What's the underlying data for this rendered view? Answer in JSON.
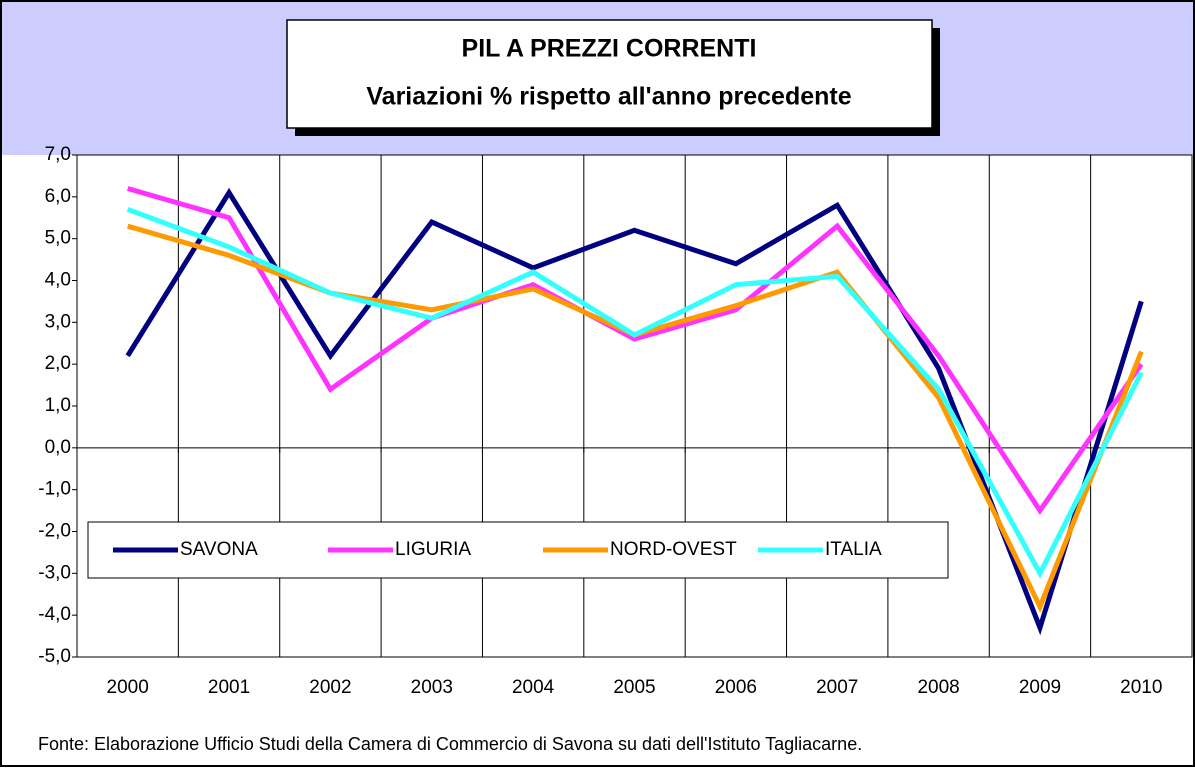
{
  "chart_data": {
    "type": "line",
    "title": "PIL A PREZZI CORRENTI",
    "subtitle": "Variazioni % rispetto all'anno precedente",
    "source": "Fonte: Elaborazione Ufficio Studi della Camera di Commercio di Savona su dati dell'Istituto Tagliacarne.",
    "categories": [
      "2000",
      "2001",
      "2002",
      "2003",
      "2004",
      "2005",
      "2006",
      "2007",
      "2008",
      "2009",
      "2010"
    ],
    "series": [
      {
        "name": "SAVONA",
        "color": "#000080",
        "values": [
          2.2,
          6.1,
          2.2,
          5.4,
          4.3,
          5.2,
          4.4,
          5.8,
          1.9,
          -4.3,
          3.5
        ]
      },
      {
        "name": "LIGURIA",
        "color": "#ff33ff",
        "values": [
          6.2,
          5.5,
          1.4,
          3.1,
          3.9,
          2.6,
          3.3,
          5.3,
          2.2,
          -1.5,
          2.0
        ]
      },
      {
        "name": "NORD-OVEST",
        "color": "#ff9900",
        "values": [
          5.3,
          4.6,
          3.7,
          3.3,
          3.8,
          2.7,
          3.4,
          4.2,
          1.2,
          -3.8,
          2.3
        ]
      },
      {
        "name": "ITALIA",
        "color": "#33ffff",
        "values": [
          5.7,
          4.8,
          3.7,
          3.1,
          4.2,
          2.7,
          3.9,
          4.1,
          1.4,
          -3.0,
          1.8
        ]
      }
    ],
    "ylim": [
      -5,
      7
    ],
    "yticks": [
      {
        "value": -5,
        "label": "-5,0"
      },
      {
        "value": -4,
        "label": "-4,0"
      },
      {
        "value": -3,
        "label": "-3,0"
      },
      {
        "value": -2,
        "label": "-2,0"
      },
      {
        "value": -1,
        "label": "-1,0"
      },
      {
        "value": 0,
        "label": "0,0"
      },
      {
        "value": 1,
        "label": "1,0"
      },
      {
        "value": 2,
        "label": "2,0"
      },
      {
        "value": 3,
        "label": "3,0"
      },
      {
        "value": 4,
        "label": "4,0"
      },
      {
        "value": 5,
        "label": "5,0"
      },
      {
        "value": 6,
        "label": "6,0"
      },
      {
        "value": 7,
        "label": "7,0"
      }
    ],
    "grid": "x",
    "legend": "lower-left"
  }
}
